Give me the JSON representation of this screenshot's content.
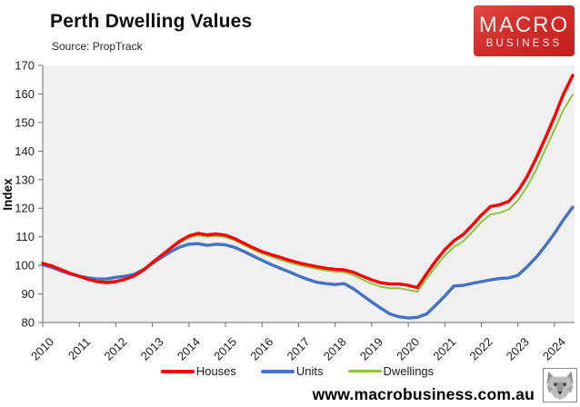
{
  "header": {
    "title": "Perth Dwelling Values",
    "source": "Source: PropTrack",
    "logo": {
      "line1": "MACRO",
      "line2": "BUSINESS",
      "bg_color": "#d22d2a",
      "text_color": "#f7efef"
    }
  },
  "footer": {
    "url": "www.macrobusiness.com.au",
    "icon": "wolf-icon"
  },
  "chart_data": {
    "type": "line",
    "title": "Perth Dwelling Values",
    "subtitle": "Source: PropTrack",
    "xlabel": "",
    "ylabel": "Index",
    "ylim": [
      80,
      170
    ],
    "ytick_step": 10,
    "xlim": [
      2010,
      2024.55
    ],
    "x_ticks": [
      2010,
      2011,
      2012,
      2013,
      2014,
      2015,
      2016,
      2017,
      2018,
      2019,
      2020,
      2021,
      2022,
      2023,
      2024
    ],
    "grid": false,
    "plot_bg": "#f0f0f0",
    "axis_color": "#6e6e6e",
    "legend_position": "bottom",
    "x": [
      2010.0,
      2010.25,
      2010.5,
      2010.75,
      2011.0,
      2011.25,
      2011.5,
      2011.75,
      2012.0,
      2012.25,
      2012.5,
      2012.75,
      2013.0,
      2013.25,
      2013.5,
      2013.75,
      2014.0,
      2014.25,
      2014.5,
      2014.75,
      2015.0,
      2015.25,
      2015.5,
      2015.75,
      2016.0,
      2016.25,
      2016.5,
      2016.75,
      2017.0,
      2017.25,
      2017.5,
      2017.75,
      2018.0,
      2018.25,
      2018.5,
      2018.75,
      2019.0,
      2019.25,
      2019.5,
      2019.75,
      2020.0,
      2020.25,
      2020.5,
      2020.75,
      2021.0,
      2021.25,
      2021.5,
      2021.75,
      2022.0,
      2022.25,
      2022.5,
      2022.75,
      2023.0,
      2023.25,
      2023.5,
      2023.75,
      2024.0,
      2024.25,
      2024.5
    ],
    "series": [
      {
        "name": "Houses",
        "color": "#fe0000",
        "line_width": 3.4,
        "values": [
          100.7,
          99.8,
          98.5,
          97.2,
          96.2,
          95.1,
          94.3,
          94.0,
          94.3,
          95.1,
          96.3,
          98.3,
          101.0,
          103.5,
          106.0,
          108.5,
          110.3,
          111.2,
          110.7,
          111.0,
          110.6,
          109.4,
          107.8,
          106.2,
          104.8,
          103.8,
          102.8,
          101.8,
          100.9,
          100.2,
          99.6,
          99.0,
          98.6,
          98.4,
          97.6,
          96.2,
          94.9,
          93.9,
          93.5,
          93.5,
          93.0,
          92.2,
          97.0,
          101.5,
          105.5,
          108.6,
          110.8,
          114.0,
          117.6,
          120.6,
          121.2,
          122.4,
          126.0,
          131.0,
          137.5,
          144.5,
          152.0,
          160.0,
          166.5
        ]
      },
      {
        "name": "Units",
        "color": "#4472c4",
        "line_width": 3.4,
        "values": [
          100.2,
          99.3,
          98.1,
          97.0,
          96.2,
          95.6,
          95.2,
          95.3,
          95.8,
          96.2,
          96.9,
          98.5,
          100.7,
          102.8,
          104.8,
          106.4,
          107.4,
          107.6,
          107.0,
          107.4,
          107.2,
          106.3,
          104.9,
          103.3,
          101.8,
          100.3,
          99.0,
          97.7,
          96.3,
          95.1,
          94.1,
          93.6,
          93.3,
          93.6,
          91.8,
          89.5,
          87.2,
          85.0,
          83.0,
          82.0,
          81.6,
          81.8,
          83.0,
          86.0,
          89.3,
          92.8,
          93.0,
          93.7,
          94.3,
          94.9,
          95.4,
          95.6,
          96.5,
          99.5,
          102.8,
          106.8,
          111.2,
          116.0,
          120.4
        ]
      },
      {
        "name": "Dwellings",
        "color": "#8dc63f",
        "line_width": 2.0,
        "values": [
          100.5,
          99.6,
          98.3,
          97.1,
          96.2,
          95.2,
          94.6,
          94.4,
          94.7,
          95.3,
          96.5,
          98.4,
          100.9,
          103.3,
          105.7,
          108.0,
          109.7,
          110.5,
          110.0,
          110.3,
          109.9,
          108.8,
          107.2,
          105.6,
          104.2,
          103.1,
          102.0,
          101.0,
          100.1,
          99.4,
          98.8,
          98.2,
          97.8,
          97.6,
          96.6,
          95.0,
          93.6,
          92.5,
          92.0,
          92.0,
          91.4,
          90.8,
          95.3,
          99.5,
          103.4,
          106.4,
          108.4,
          111.6,
          115.2,
          117.8,
          118.4,
          119.6,
          122.8,
          127.5,
          133.5,
          140.5,
          147.5,
          154.5,
          159.8
        ]
      }
    ]
  }
}
